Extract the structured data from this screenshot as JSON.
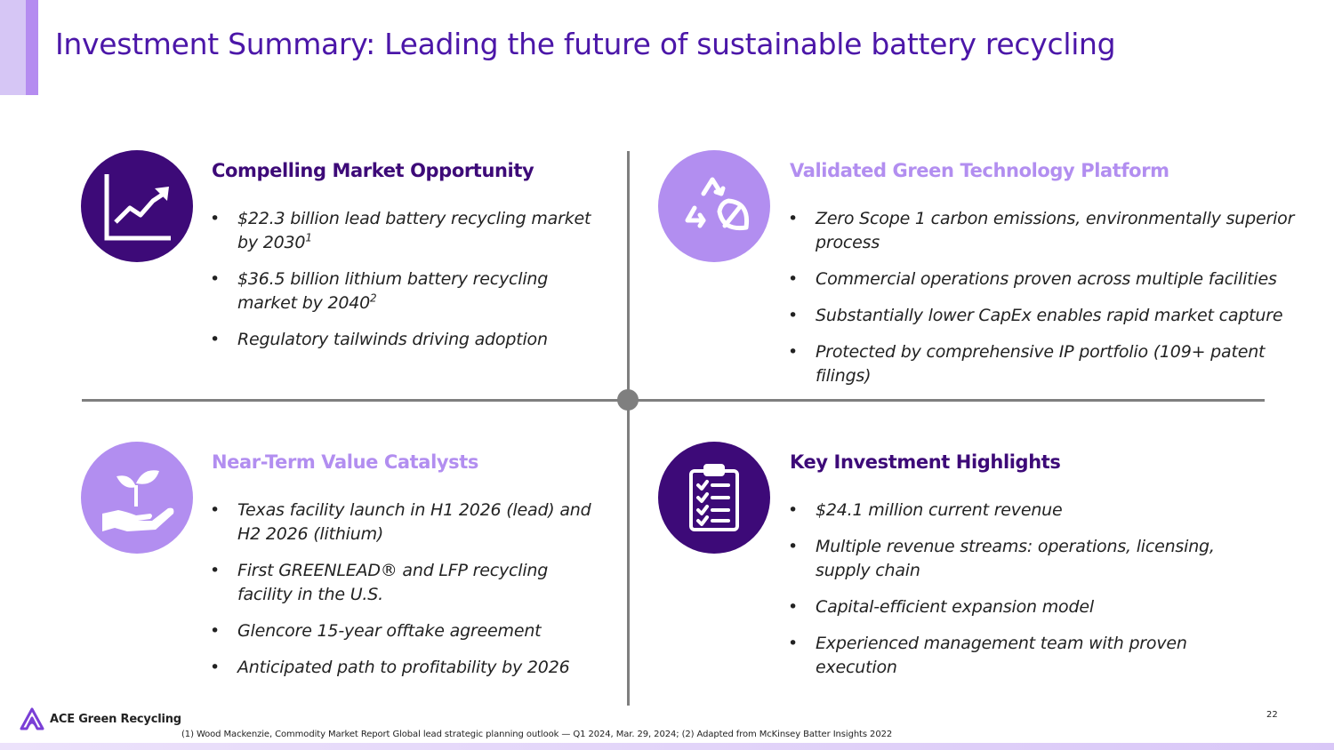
{
  "title": "Investment Summary: Leading the future of sustainable battery recycling",
  "colors": {
    "dark_purple": "#3d0a78",
    "light_purple": "#b28ef0",
    "title_purple": "#4b16a8",
    "divider_gray": "#7f7f7f"
  },
  "quadrants": {
    "market": {
      "heading": "Compelling Market Opportunity",
      "icon": "chart-up-icon",
      "bullets": [
        {
          "text": "$22.3 billion lead battery recycling market by 2030",
          "sup": "1"
        },
        {
          "text": "$36.5 billion lithium battery recycling market by 2040",
          "sup": "2"
        },
        {
          "text": "Regulatory tailwinds driving adoption"
        }
      ]
    },
    "technology": {
      "heading": "Validated Green Technology Platform",
      "icon": "recycle-leaf-icon",
      "bullets": [
        {
          "text": "Zero Scope 1 carbon emissions, environmentally superior process"
        },
        {
          "text": "Commercial operations proven across multiple facilities"
        },
        {
          "text": "Substantially lower CapEx enables rapid market capture"
        },
        {
          "text": "Protected by comprehensive IP portfolio (109+ patent filings)"
        }
      ]
    },
    "catalysts": {
      "heading": "Near-Term Value Catalysts",
      "icon": "hand-sprout-icon",
      "bullets": [
        {
          "text": "Texas facility launch in H1 2026 (lead) and H2 2026 (lithium)"
        },
        {
          "text": "First GREENLEAD® and LFP recycling facility in the U.S."
        },
        {
          "text": "Glencore 15-year offtake agreement"
        },
        {
          "text": "Anticipated path to profitability by 2026"
        }
      ]
    },
    "highlights": {
      "heading": "Key Investment Highlights",
      "icon": "clipboard-checklist-icon",
      "bullets": [
        {
          "text": "$24.1 million current revenue"
        },
        {
          "text": "Multiple revenue streams: operations, licensing, supply chain"
        },
        {
          "text": "Capital-efficient expansion model"
        },
        {
          "text": "Experienced management team with proven execution"
        }
      ]
    }
  },
  "footer": {
    "logo_text": "ACE Green Recycling",
    "footnote": "(1) Wood Mackenzie, Commodity Market Report Global lead strategic planning outlook — Q1 2024, Mar. 29, 2024; (2) Adapted from McKinsey Batter Insights 2022",
    "page_number": "22"
  }
}
